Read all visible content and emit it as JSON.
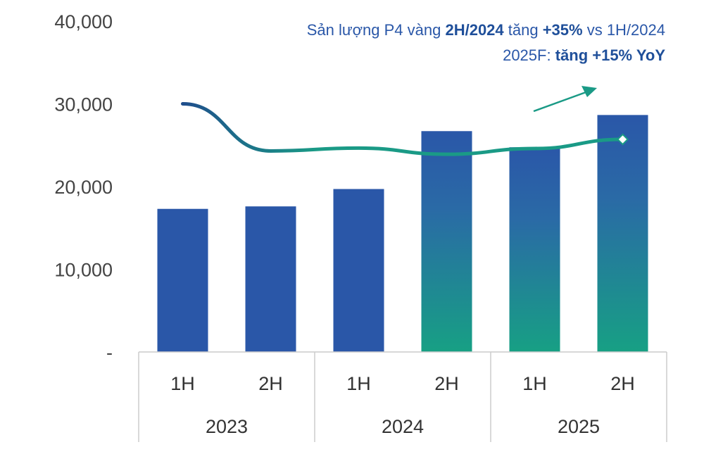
{
  "annotation": {
    "line1": {
      "p1": "Sản lượng P4 vàng ",
      "b1": "2H/2024",
      "p2": " tăng ",
      "b2": "+35%",
      "p3": " vs 1H/2024"
    },
    "line2": {
      "p1": "2025F: ",
      "b1": "tăng +15% YoY"
    },
    "arrow_icon": "trend-up-arrow"
  },
  "chart_data": {
    "type": "bar",
    "title": "",
    "xlabel": "",
    "ylabel": "",
    "ylim": [
      0,
      40000
    ],
    "yticks": [
      0,
      10000,
      20000,
      30000,
      40000
    ],
    "ytick_labels": [
      "-",
      "10,000",
      "20,000",
      "30,000",
      "40,000"
    ],
    "grid": false,
    "categories": [
      "1H",
      "2H",
      "1H",
      "2H",
      "1H",
      "2H"
    ],
    "groups": [
      {
        "label": "2023",
        "span": 2
      },
      {
        "label": "2024",
        "span": 2
      },
      {
        "label": "2025",
        "span": 2
      }
    ],
    "series": [
      {
        "type": "bar",
        "values": [
          17300,
          17600,
          19700,
          26700,
          24750,
          28650
        ],
        "highlighted": [
          false,
          false,
          false,
          true,
          true,
          true
        ]
      },
      {
        "type": "line",
        "values": [
          30000,
          24300,
          24650,
          23900,
          24600,
          25700
        ]
      }
    ],
    "colors": {
      "bar": "#2a57a8",
      "bar_gradient_bottom": "#17a084",
      "line_start": "#1f4e8c",
      "line_end": "#1a9a86",
      "text": "#2a57a8"
    }
  }
}
